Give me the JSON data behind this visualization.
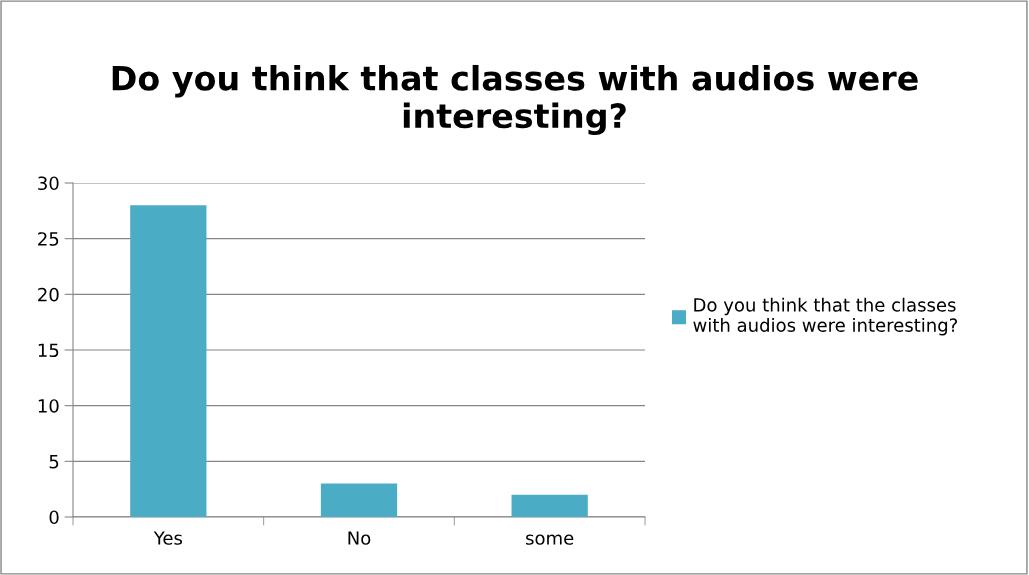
{
  "chart_data": {
    "type": "bar",
    "title": "Do you think that classes with audios were interesting?",
    "categories": [
      "Yes",
      "No",
      "some"
    ],
    "series": [
      {
        "name": "Do you think that the classes with audios were interesting?",
        "color": "#4bacc6",
        "values": [
          28,
          3,
          2
        ]
      }
    ],
    "ylim": [
      0,
      30
    ],
    "yticks": [
      0,
      5,
      10,
      15,
      20,
      25,
      30
    ],
    "grid": "y",
    "legend": "right"
  }
}
